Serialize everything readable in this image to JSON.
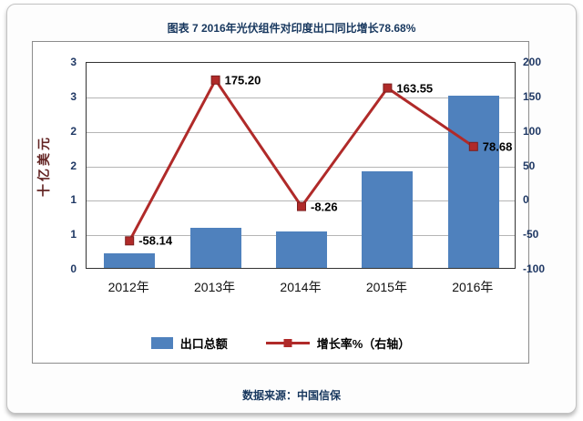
{
  "title": "图表 7  2016年光伏组件对印度出口同比增长78.68%",
  "source": "数据来源：中国信保",
  "colors": {
    "title": "#17375E",
    "axis_labels": "#1F3864",
    "left_axis_title": "#632423",
    "bar": "#4F81BD",
    "line": "#B02A29"
  },
  "chart_data": {
    "type": "bar+line",
    "categories": [
      "2012年",
      "2013年",
      "2014年",
      "2015年",
      "2016年"
    ],
    "series": [
      {
        "name": "出口总额",
        "type": "bar",
        "axis": "left",
        "color": "#4F81BD",
        "values": [
          0.21,
          0.58,
          0.53,
          1.4,
          2.5
        ]
      },
      {
        "name": "增长率%（右轴）",
        "type": "line",
        "axis": "right",
        "color": "#B02A29",
        "values": [
          -58.14,
          175.2,
          -8.26,
          163.55,
          78.68
        ],
        "labels": [
          "-58.14",
          "175.20",
          "-8.26",
          "163.55",
          "78.68"
        ]
      }
    ],
    "left_axis": {
      "title": "十亿美元",
      "min": 0,
      "max": 3,
      "ticks": [
        "3",
        "3",
        "2",
        "2",
        "1",
        "1",
        "0"
      ]
    },
    "right_axis": {
      "min": -100,
      "max": 200,
      "ticks": [
        "200",
        "150",
        "100",
        "50",
        "0",
        "-50",
        "-100"
      ]
    },
    "grid": true,
    "legend_position": "bottom"
  }
}
